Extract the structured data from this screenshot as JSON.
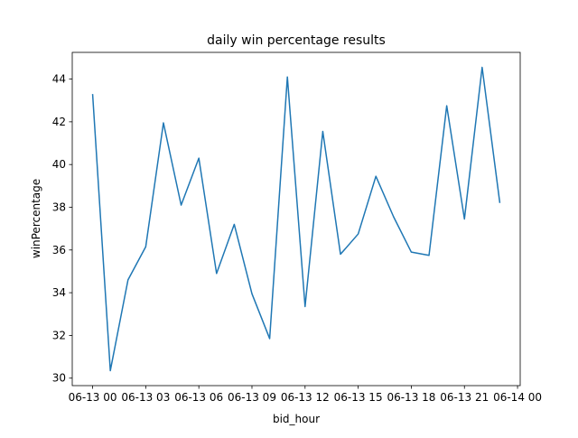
{
  "chart_data": {
    "type": "line",
    "title": "daily win percentage results",
    "xlabel": "bid_hour",
    "ylabel": "winPercentage",
    "grid": false,
    "legend": "none",
    "x": [
      "2023-06-13 00:00",
      "2023-06-13 01:00",
      "2023-06-13 02:00",
      "2023-06-13 03:00",
      "2023-06-13 04:00",
      "2023-06-13 05:00",
      "2023-06-13 06:00",
      "2023-06-13 07:00",
      "2023-06-13 08:00",
      "2023-06-13 09:00",
      "2023-06-13 10:00",
      "2023-06-13 11:00",
      "2023-06-13 12:00",
      "2023-06-13 13:00",
      "2023-06-13 14:00",
      "2023-06-13 15:00",
      "2023-06-13 16:00",
      "2023-06-13 17:00",
      "2023-06-13 18:00",
      "2023-06-13 19:00",
      "2023-06-13 20:00",
      "2023-06-13 21:00",
      "2023-06-13 22:00",
      "2023-06-13 23:00"
    ],
    "series": [
      {
        "color": "#1f77b4",
        "values": [
          43.3,
          30.35,
          34.6,
          36.15,
          41.95,
          38.1,
          40.3,
          34.9,
          37.2,
          33.95,
          31.85,
          44.1,
          33.35,
          41.55,
          35.8,
          36.75,
          39.45,
          37.55,
          35.9,
          35.75,
          42.75,
          37.45,
          44.55,
          38.2
        ]
      }
    ],
    "xticks": [
      {
        "hour": 0,
        "label": "06-13 00"
      },
      {
        "hour": 3,
        "label": "06-13 03"
      },
      {
        "hour": 6,
        "label": "06-13 06"
      },
      {
        "hour": 9,
        "label": "06-13 09"
      },
      {
        "hour": 12,
        "label": "06-13 12"
      },
      {
        "hour": 15,
        "label": "06-13 15"
      },
      {
        "hour": 18,
        "label": "06-13 18"
      },
      {
        "hour": 21,
        "label": "06-13 21"
      },
      {
        "hour": 24,
        "label": "06-14 00"
      }
    ],
    "yticks": [
      30,
      32,
      34,
      36,
      38,
      40,
      42,
      44
    ],
    "xlim": [
      "2023-06-12 22:51",
      "2023-06-14 00:09"
    ],
    "ylim": [
      29.65,
      45.25
    ]
  }
}
